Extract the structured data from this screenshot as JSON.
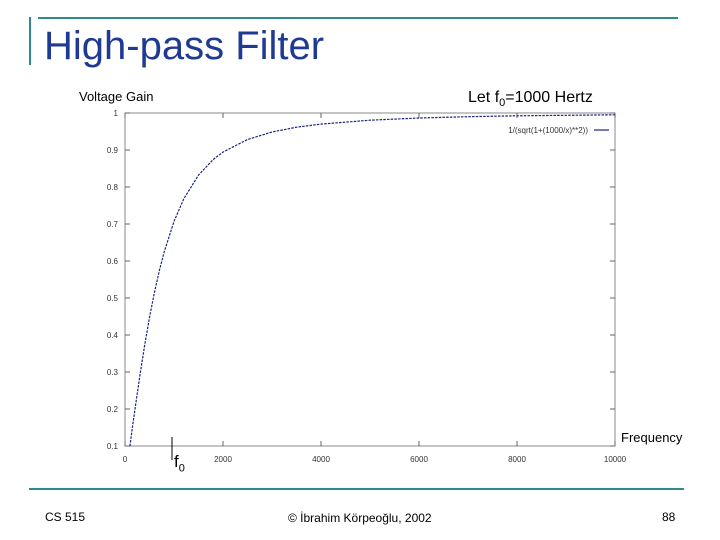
{
  "slide": {
    "title": "High-pass Filter",
    "y_axis_label": "Voltage Gain",
    "note_prefix": "Let f",
    "note_sub": "0",
    "note_suffix": "=1000 Hertz",
    "x_axis_label": "Frequency",
    "f0_main": "f",
    "f0_sub": "0",
    "footer_left": "CS 515",
    "footer_center": "© İbrahim Körpeoğlu, 2002",
    "footer_right": "88",
    "accent_color": "#2e8b8b",
    "title_color": "#1f3a93"
  },
  "chart_data": {
    "type": "line",
    "title": "",
    "xlabel": "Frequency",
    "ylabel": "Voltage Gain",
    "xlim": [
      0,
      10000
    ],
    "ylim": [
      0.1,
      1
    ],
    "x_ticks": [
      "0",
      "2000",
      "4000",
      "6000",
      "8000",
      "10000"
    ],
    "y_ticks": [
      "0.1",
      "0.2",
      "0.3",
      "0.4",
      "0.5",
      "0.6",
      "0.7",
      "0.8",
      "0.9",
      "1"
    ],
    "legend_position": "top-right",
    "grid": false,
    "series": [
      {
        "name": "1/(sqrt(1+(1000/x)**2))",
        "color": "#1a237e",
        "x": [
          100,
          150,
          200,
          250,
          300,
          400,
          500,
          600,
          700,
          800,
          1000,
          1200,
          1500,
          1800,
          2000,
          2500,
          3000,
          3500,
          4000,
          5000,
          6000,
          7000,
          8000,
          9000,
          10000
        ],
        "y": [
          0.0995,
          0.1483,
          0.1961,
          0.2425,
          0.2873,
          0.3714,
          0.4472,
          0.5145,
          0.5735,
          0.6247,
          0.7071,
          0.7682,
          0.8321,
          0.8742,
          0.8944,
          0.9285,
          0.9487,
          0.9615,
          0.9701,
          0.9806,
          0.9864,
          0.9899,
          0.9923,
          0.9939,
          0.995
        ]
      }
    ]
  }
}
